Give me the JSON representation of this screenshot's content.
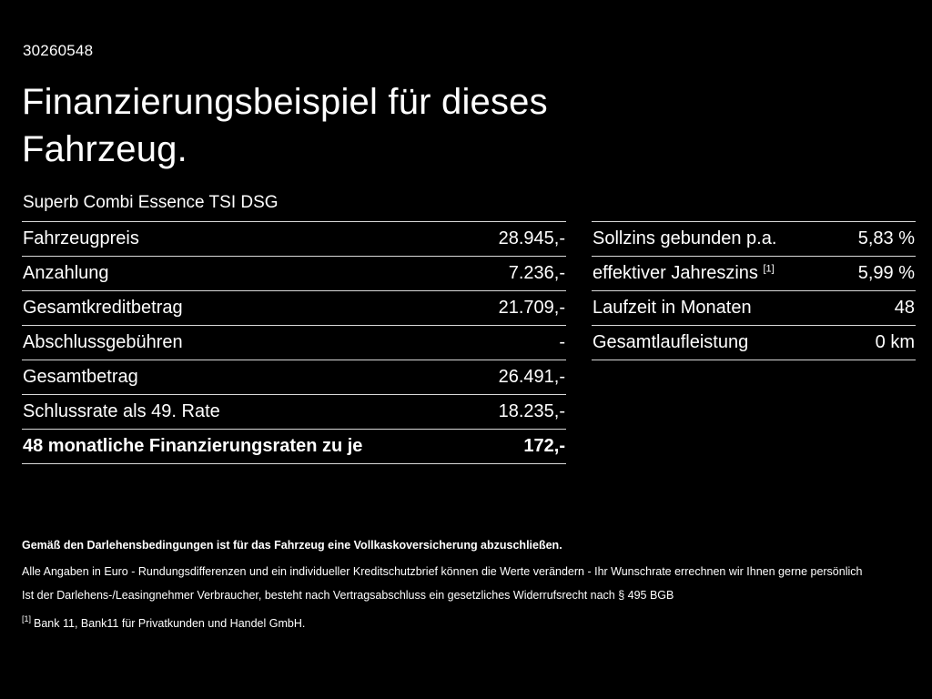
{
  "page": {
    "id_number": "30260548",
    "title_line1": "Finanzierungsbeispiel für dieses",
    "title_line2": "Fahrzeug.",
    "subtitle": "Superb Combi Essence TSI DSG"
  },
  "left_table": {
    "rows": [
      {
        "label": "Fahrzeugpreis",
        "value": "28.945,-"
      },
      {
        "label": "Anzahlung",
        "value": "7.236,-"
      },
      {
        "label": "Gesamtkreditbetrag",
        "value": "21.709,-"
      },
      {
        "label": "Abschlussgebühren",
        "value": "-"
      },
      {
        "label": "Gesamtbetrag",
        "value": "26.491,-"
      },
      {
        "label": "Schlussrate als 49. Rate",
        "value": "18.235,-"
      },
      {
        "label": "48 monatliche Finanzierungsraten zu je",
        "value": "172,-"
      }
    ]
  },
  "right_table": {
    "rows": [
      {
        "label": "Sollzins gebunden p.a.",
        "value": "5,83 %"
      },
      {
        "label": "effektiver Jahreszins",
        "sup": "[1]",
        "value": "5,99 %"
      },
      {
        "label": "Laufzeit in Monaten",
        "value": "48"
      },
      {
        "label": "Gesamtlaufleistung",
        "value": "0 km"
      }
    ]
  },
  "footer": {
    "bold_line": "Gemäß den Darlehensbedingungen ist für das Fahrzeug eine Vollkaskoversicherung abzuschließen.",
    "line1": "Alle Angaben in Euro - Rundungsdifferenzen und ein individueller Kreditschutzbrief können die Werte verändern - Ihr Wunschrate errechnen wir Ihnen gerne persönlich",
    "line2": "Ist der Darlehens-/Leasingnehmer Verbraucher, besteht nach Vertragsabschluss ein gesetzliches Widerrufsrecht nach § 495 BGB",
    "ref_marker": "[1]",
    "ref_text": "Bank 11, Bank11 für Privatkunden und Handel GmbH."
  }
}
